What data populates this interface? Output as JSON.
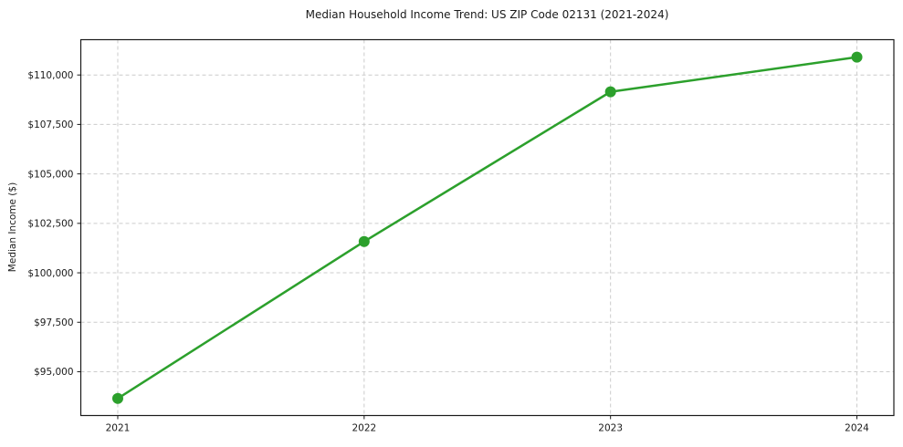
{
  "chart_data": {
    "type": "line",
    "title": "Median Household Income Trend: US ZIP Code 02131 (2021-2024)",
    "xlabel": "",
    "ylabel": "Median Income ($)",
    "series_name": "Median household income",
    "x": [
      2021,
      2022,
      2023,
      2024
    ],
    "x_tick_labels": [
      "2021",
      "2022",
      "2023",
      "2024"
    ],
    "values": [
      93650,
      101580,
      109150,
      110900
    ],
    "y_ticks": [
      95000,
      97500,
      100000,
      102500,
      105000,
      107500,
      110000
    ],
    "y_tick_labels": [
      "$95,000",
      "$97,500",
      "$100,000",
      "$102,500",
      "$105,000",
      "$107,500",
      "$110,000"
    ],
    "xlim": [
      2020.85,
      2024.15
    ],
    "ylim": [
      92786,
      111784
    ],
    "grid": true,
    "grid_style": "dashed",
    "legend": "none",
    "colors": {
      "line": "#2ca02c",
      "marker": "#2ca02c",
      "grid": "#cccccc",
      "spine": "#1a1a1a",
      "text": "#1a1a1a",
      "background": "#ffffff"
    },
    "marker": "circle"
  }
}
